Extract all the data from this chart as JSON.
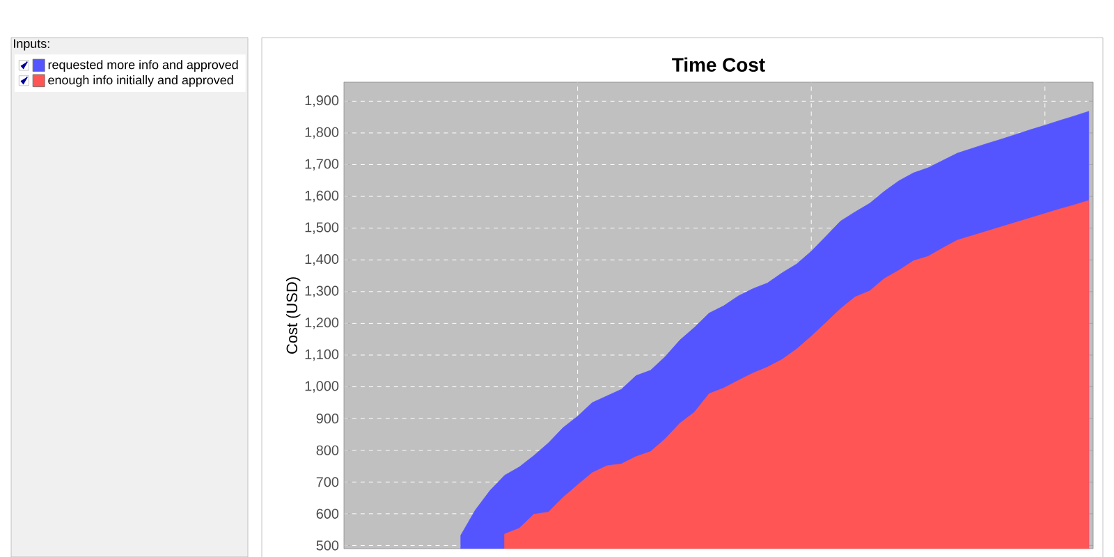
{
  "chart_data": {
    "type": "area",
    "title": "Time Cost",
    "ylabel": "Cost (USD)",
    "legend_title": "Inputs:",
    "categories": [
      null,
      null,
      null,
      null,
      null,
      null,
      null,
      null,
      null,
      null,
      null,
      null,
      null,
      null,
      null,
      null,
      null,
      null,
      null,
      null,
      null,
      null,
      null,
      null,
      null,
      null,
      null,
      null,
      null,
      null,
      null,
      null,
      null,
      null,
      null,
      null,
      null,
      null,
      null,
      null,
      null,
      null,
      null,
      null,
      null,
      null,
      null,
      null,
      null,
      null,
      null,
      null
    ],
    "ylim": [
      490,
      1960
    ],
    "yticks": [
      {
        "value": 500,
        "label": "500"
      },
      {
        "value": 600,
        "label": "600"
      },
      {
        "value": 700,
        "label": "700"
      },
      {
        "value": 800,
        "label": "800"
      },
      {
        "value": 900,
        "label": "900"
      },
      {
        "value": 1000,
        "label": "1,000"
      },
      {
        "value": 1100,
        "label": "1,100"
      },
      {
        "value": 1200,
        "label": "1,200"
      },
      {
        "value": 1300,
        "label": "1,300"
      },
      {
        "value": 1400,
        "label": "1,400"
      },
      {
        "value": 1500,
        "label": "1,500"
      },
      {
        "value": 1600,
        "label": "1,600"
      },
      {
        "value": 1700,
        "label": "1,700"
      },
      {
        "value": 1800,
        "label": "1,800"
      },
      {
        "value": 1900,
        "label": "1,900"
      }
    ],
    "tick_labels": "y",
    "grid": true,
    "legend": "left",
    "series": [
      {
        "name": "requested more info and approved",
        "color": "#5555ff",
        "values": [
          null,
          null,
          null,
          null,
          null,
          null,
          null,
          null,
          532,
          612,
          673,
          721,
          747,
          783,
          823,
          871,
          907,
          950,
          971,
          992,
          1035,
          1052,
          1095,
          1147,
          1187,
          1232,
          1255,
          1286,
          1309,
          1327,
          1359,
          1387,
          1427,
          1474,
          1522,
          1551,
          1578,
          1616,
          1649,
          1674,
          1690,
          1713,
          1736,
          1751,
          1766,
          1780,
          1795,
          1810,
          1824,
          1839,
          1853,
          1868
        ]
      },
      {
        "name": "enough info initially and approved",
        "color": "#ff5555",
        "values": [
          null,
          null,
          null,
          null,
          null,
          null,
          null,
          null,
          null,
          null,
          null,
          536,
          554,
          598,
          605,
          651,
          691,
          729,
          751,
          757,
          780,
          796,
          836,
          885,
          920,
          978,
          996,
          1020,
          1043,
          1062,
          1086,
          1119,
          1159,
          1202,
          1246,
          1283,
          1302,
          1341,
          1367,
          1397,
          1411,
          1437,
          1462,
          1476,
          1490,
          1504,
          1518,
          1532,
          1546,
          1560,
          1573,
          1587
        ]
      }
    ]
  }
}
